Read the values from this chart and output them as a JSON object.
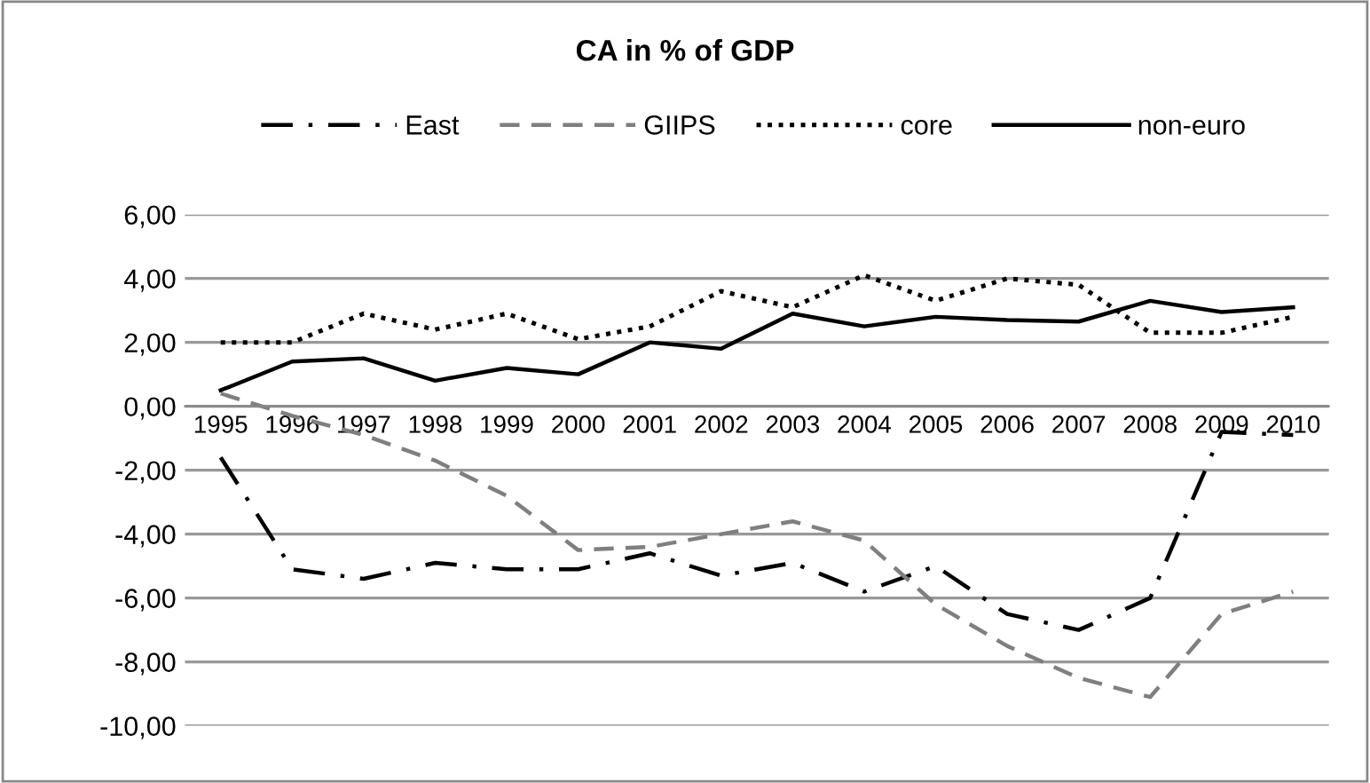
{
  "chart_data": {
    "type": "line",
    "title": "CA in % of GDP",
    "categories": [
      "1995",
      "1996",
      "1997",
      "1998",
      "1999",
      "2000",
      "2001",
      "2002",
      "2003",
      "2004",
      "2005",
      "2006",
      "2007",
      "2008",
      "2009",
      "2010"
    ],
    "series": [
      {
        "name": "East",
        "color": "#000000",
        "line_style": "dashdot",
        "values": [
          -1.6,
          -5.1,
          -5.4,
          -4.9,
          -5.1,
          -5.1,
          -4.6,
          -5.3,
          -4.9,
          -5.8,
          -5.0,
          -6.5,
          -7.0,
          -6.0,
          -0.8,
          -0.9
        ]
      },
      {
        "name": "GIIPS",
        "color": "#7f7f7f",
        "line_style": "dashed",
        "values": [
          0.4,
          -0.3,
          -0.9,
          -1.7,
          -2.8,
          -4.5,
          -4.4,
          -4.0,
          -3.6,
          -4.2,
          -6.2,
          -7.5,
          -8.5,
          -9.1,
          -6.5,
          -5.8
        ]
      },
      {
        "name": "core",
        "color": "#000000",
        "line_style": "dotted",
        "values": [
          2.0,
          2.0,
          2.9,
          2.4,
          2.9,
          2.1,
          2.5,
          3.6,
          3.1,
          4.1,
          3.3,
          4.0,
          3.8,
          2.3,
          2.3,
          2.8
        ]
      },
      {
        "name": "non-euro",
        "color": "#000000",
        "line_style": "solid",
        "values": [
          0.5,
          1.4,
          1.5,
          0.8,
          1.2,
          1.0,
          2.0,
          1.8,
          2.9,
          2.5,
          2.8,
          2.7,
          2.65,
          3.3,
          2.95,
          3.1
        ]
      }
    ],
    "ylim": [
      -10,
      6
    ],
    "yticks": [
      {
        "value": -10,
        "label": "-10,00"
      },
      {
        "value": -8,
        "label": "-8,00"
      },
      {
        "value": -6,
        "label": "-6,00"
      },
      {
        "value": -4,
        "label": "-4,00"
      },
      {
        "value": -2,
        "label": "-2,00"
      },
      {
        "value": 0,
        "label": "0,00"
      },
      {
        "value": 2,
        "label": "2,00"
      },
      {
        "value": 4,
        "label": "4,00"
      },
      {
        "value": 6,
        "label": "6,00"
      }
    ],
    "grid": "y",
    "legend": "top",
    "marker": "none"
  }
}
